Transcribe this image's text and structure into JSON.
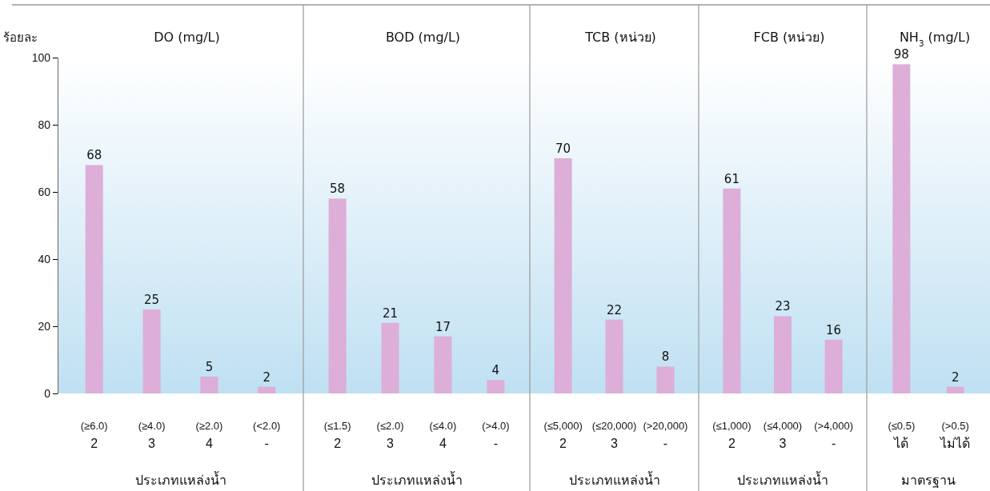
{
  "chart_data": [
    {
      "type": "bar",
      "title": "DO (mg/L)",
      "ylabel": "ร้อยละ",
      "xlabel": "ประเภทแหล่งน้ำ",
      "categories": [
        "(≥6.0)\n2",
        "(≥4.0)\n3",
        "(≥2.0)\n4",
        "(<2.0)\n-"
      ],
      "values": [
        68,
        25,
        5,
        2
      ],
      "color": "#dcaed8",
      "ylim": [
        0,
        100
      ],
      "yticks": [
        0,
        20,
        40,
        60,
        80,
        100
      ],
      "data_labels": true
    },
    {
      "type": "bar",
      "title": "BOD (mg/L)",
      "xlabel": "ประเภทแหล่งน้ำ",
      "categories": [
        "(≤1.5)\n2",
        "(≤2.0)\n3",
        "(≤4.0)\n4",
        "(>4.0)\n-"
      ],
      "values": [
        58,
        21,
        17,
        4
      ],
      "color": "#dcaed8",
      "ylim": [
        0,
        100
      ],
      "tick_labels": "x",
      "data_labels": true
    },
    {
      "type": "bar",
      "title": "TCB (หน่วย)",
      "xlabel": "ประเภทแหล่งน้ำ",
      "categories": [
        "(≤5,000)\n2",
        "(≤20,000)\n3",
        "(>20,000)\n-"
      ],
      "values": [
        70,
        22,
        8
      ],
      "color": "#dcaed8",
      "ylim": [
        0,
        100
      ],
      "tick_labels": "x",
      "data_labels": true
    },
    {
      "type": "bar",
      "title": "FCB (หน่วย)",
      "xlabel": "ประเภทแหล่งน้ำ",
      "categories": [
        "(≤1,000)\n2",
        "(≤4,000)\n3",
        "(>4,000)\n-"
      ],
      "values": [
        61,
        23,
        16
      ],
      "color": "#dcaed8",
      "ylim": [
        0,
        100
      ],
      "tick_labels": "x",
      "data_labels": true
    },
    {
      "type": "bar",
      "title": "NH$_{3}$ (mg/L)",
      "xlabel": "มาตรฐาน",
      "categories": [
        "(≤0.5)\nได้",
        "(>0.5)\nไม่ได้"
      ],
      "values": [
        98,
        2
      ],
      "color": "#dcaed8",
      "ylim": [
        0,
        100
      ],
      "tick_labels": "x",
      "data_labels": true
    }
  ]
}
